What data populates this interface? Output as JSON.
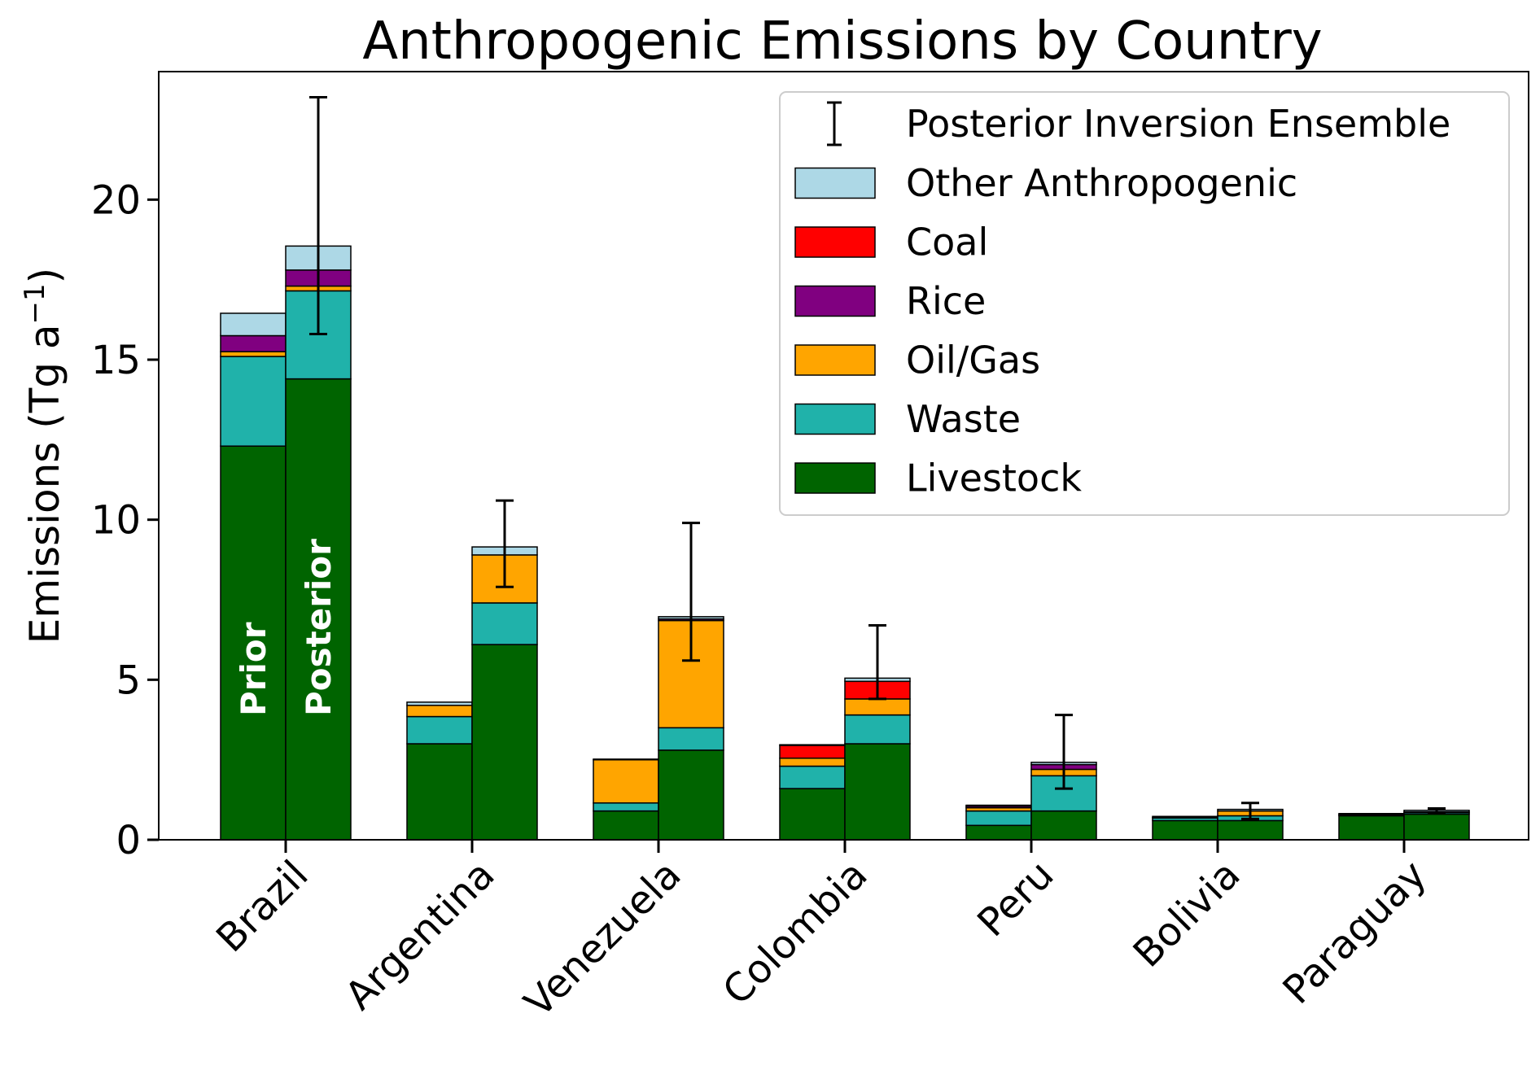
{
  "chart_data": {
    "type": "bar",
    "stacked": true,
    "title": "Anthropogenic Emissions by Country",
    "ylabel": "Emissions (Tg a",
    "ylabel_sup": "−1",
    "ylabel_tail": ")",
    "ylim": [
      0,
      24
    ],
    "yticks": [
      0,
      5,
      10,
      15,
      20
    ],
    "categories": [
      "Brazil",
      "Argentina",
      "Venezuela",
      "Colombia",
      "Peru",
      "Bolivia",
      "Paraguay"
    ],
    "bar_labels": {
      "prior": "Prior",
      "posterior": "Posterior"
    },
    "sectors": [
      {
        "name": "Livestock",
        "color": "#006400"
      },
      {
        "name": "Waste",
        "color": "#20b2aa"
      },
      {
        "name": "Oil/Gas",
        "color": "#ffa500"
      },
      {
        "name": "Rice",
        "color": "#800080"
      },
      {
        "name": "Coal",
        "color": "#ff0000"
      },
      {
        "name": "Other Anthropogenic",
        "color": "#add8e6"
      }
    ],
    "prior": [
      [
        12.3,
        2.8,
        0.15,
        0.5,
        0.0,
        0.7
      ],
      [
        3.0,
        0.85,
        0.35,
        0.0,
        0.0,
        0.1
      ],
      [
        0.9,
        0.25,
        1.35,
        0.0,
        0.0,
        0.02
      ],
      [
        1.6,
        0.7,
        0.25,
        0.0,
        0.4,
        0.02
      ],
      [
        0.45,
        0.45,
        0.1,
        0.05,
        0.0,
        0.03
      ],
      [
        0.6,
        0.08,
        0.02,
        0.0,
        0.0,
        0.03
      ],
      [
        0.75,
        0.03,
        0.01,
        0.0,
        0.0,
        0.03
      ]
    ],
    "posterior": [
      [
        14.4,
        2.75,
        0.15,
        0.5,
        0.0,
        0.75
      ],
      [
        6.1,
        1.3,
        1.5,
        0.0,
        0.0,
        0.25
      ],
      [
        2.8,
        0.7,
        3.35,
        0.05,
        0.0,
        0.07
      ],
      [
        3.0,
        0.9,
        0.5,
        0.0,
        0.55,
        0.1
      ],
      [
        0.9,
        1.1,
        0.2,
        0.15,
        0.0,
        0.07
      ],
      [
        0.6,
        0.15,
        0.15,
        0.0,
        0.0,
        0.05
      ],
      [
        0.8,
        0.05,
        0.02,
        0.0,
        0.0,
        0.05
      ]
    ],
    "ensemble": [
      [
        15.8,
        23.2
      ],
      [
        7.9,
        10.6
      ],
      [
        5.6,
        9.9
      ],
      [
        4.4,
        6.7
      ],
      [
        1.6,
        3.9
      ],
      [
        0.65,
        1.15
      ],
      [
        0.85,
        0.98
      ]
    ],
    "legend": {
      "position": "top-right",
      "errorbar_label": "Posterior Inversion Ensemble",
      "order": [
        "Other Anthropogenic",
        "Coal",
        "Rice",
        "Oil/Gas",
        "Waste",
        "Livestock"
      ]
    }
  }
}
